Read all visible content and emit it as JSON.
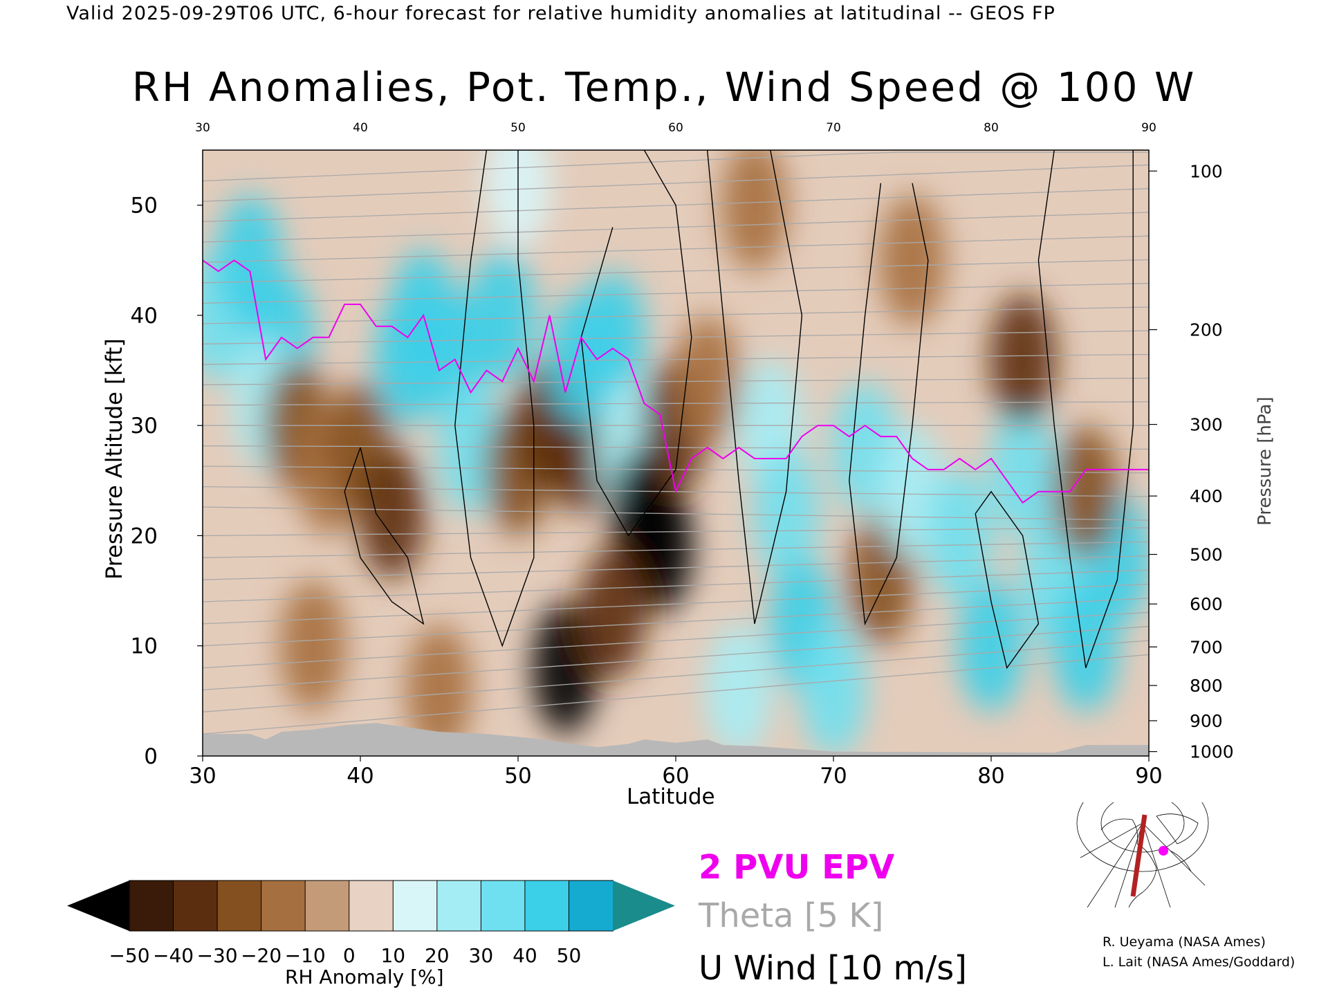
{
  "header": "Valid 2025-09-29T06 UTC, 6-hour forecast for relative humidity anomalies at latitudinal -- GEOS FP",
  "title": "RH Anomalies, Pot. Temp., Wind Speed @ 100 W",
  "axes": {
    "xlabel": "Latitude",
    "ylabel_left": "Pressure Altitude [kft]",
    "ylabel_right": "Pressure [hPa]",
    "x_ticks": [
      30,
      40,
      50,
      60,
      70,
      80,
      90
    ],
    "x_top_ticks": [
      30,
      40,
      50,
      60,
      70,
      80,
      90
    ],
    "y_ticks_kft": [
      0,
      10,
      20,
      30,
      40,
      50
    ],
    "pressure_ticks": [
      {
        "hpa": 100,
        "kft": 53.1
      },
      {
        "hpa": 200,
        "kft": 38.7
      },
      {
        "hpa": 300,
        "kft": 30.1
      },
      {
        "hpa": 400,
        "kft": 23.6
      },
      {
        "hpa": 500,
        "kft": 18.3
      },
      {
        "hpa": 600,
        "kft": 13.8
      },
      {
        "hpa": 700,
        "kft": 9.9
      },
      {
        "hpa": 800,
        "kft": 6.4
      },
      {
        "hpa": 900,
        "kft": 3.2
      },
      {
        "hpa": 1000,
        "kft": 0.4
      }
    ],
    "xlim": [
      30,
      90
    ],
    "ylim": [
      0,
      55
    ]
  },
  "legend": {
    "epv": "2 PVU EPV",
    "theta": "Theta [5 K]",
    "uwind": "U Wind [10 m/s]",
    "epv_color": "#ee00ee",
    "theta_color": "#a9a9a9",
    "uwind_color": "#000000"
  },
  "colorbar": {
    "label": "RH Anomaly [%]",
    "ticks": [
      -50,
      -40,
      -30,
      -20,
      -10,
      0,
      10,
      20,
      30,
      40,
      50
    ],
    "tick_labels": [
      "−50",
      "−40",
      "−30",
      "−20",
      "−10",
      "0",
      "10",
      "20",
      "30",
      "40",
      "50"
    ],
    "colors": [
      "#3a1a08",
      "#5c2e10",
      "#84501f",
      "#a66f3f",
      "#c49b78",
      "#e7d2c4",
      "#d8f6f8",
      "#a5edf5",
      "#6fe0f0",
      "#3ccfe8",
      "#15abd0"
    ],
    "under_color": "#000000",
    "over_color": "#1a8c8c"
  },
  "credits": [
    "R. Ueyama (NASA Ames)",
    "L. Lait (NASA Ames/Goddard)"
  ],
  "chart_data": {
    "type": "heatmap",
    "title": "RH Anomalies, Pot. Temp., Wind Speed @ 100 W",
    "xlabel": "Latitude",
    "ylabel": "Pressure Altitude [kft]",
    "xlim": [
      30,
      90
    ],
    "ylim": [
      0,
      55
    ],
    "grid": false,
    "legend_placement": "bottom-right",
    "rh_anomaly_blobs": [
      {
        "lat": 31,
        "kft": 40,
        "value": 35
      },
      {
        "lat": 33,
        "kft": 45,
        "value": 40
      },
      {
        "lat": 35,
        "kft": 38,
        "value": 45
      },
      {
        "lat": 34,
        "kft": 32,
        "value": 25
      },
      {
        "lat": 36,
        "kft": 30,
        "value": -25
      },
      {
        "lat": 38,
        "kft": 26,
        "value": -20
      },
      {
        "lat": 40,
        "kft": 28,
        "value": -30
      },
      {
        "lat": 42,
        "kft": 22,
        "value": -35
      },
      {
        "lat": 43,
        "kft": 36,
        "value": 40
      },
      {
        "lat": 44,
        "kft": 40,
        "value": 45
      },
      {
        "lat": 46,
        "kft": 36,
        "value": 40
      },
      {
        "lat": 47,
        "kft": 28,
        "value": 35
      },
      {
        "lat": 49,
        "kft": 40,
        "value": 40
      },
      {
        "lat": 50,
        "kft": 26,
        "value": -30
      },
      {
        "lat": 52,
        "kft": 30,
        "value": -35
      },
      {
        "lat": 54,
        "kft": 28,
        "value": -40
      },
      {
        "lat": 54,
        "kft": 36,
        "value": 40
      },
      {
        "lat": 56,
        "kft": 38,
        "value": 45
      },
      {
        "lat": 57,
        "kft": 28,
        "value": 25
      },
      {
        "lat": 58,
        "kft": 22,
        "value": -50
      },
      {
        "lat": 59,
        "kft": 19,
        "value": -50
      },
      {
        "lat": 53,
        "kft": 8,
        "value": -50
      },
      {
        "lat": 56,
        "kft": 13,
        "value": -40
      },
      {
        "lat": 60,
        "kft": 30,
        "value": -35
      },
      {
        "lat": 62,
        "kft": 34,
        "value": -20
      },
      {
        "lat": 66,
        "kft": 30,
        "value": 20
      },
      {
        "lat": 67,
        "kft": 22,
        "value": 35
      },
      {
        "lat": 68,
        "kft": 12,
        "value": 40
      },
      {
        "lat": 70,
        "kft": 6,
        "value": 35
      },
      {
        "lat": 72,
        "kft": 28,
        "value": 30
      },
      {
        "lat": 73,
        "kft": 16,
        "value": -25
      },
      {
        "lat": 75,
        "kft": 24,
        "value": 25
      },
      {
        "lat": 78,
        "kft": 20,
        "value": 35
      },
      {
        "lat": 80,
        "kft": 10,
        "value": 45
      },
      {
        "lat": 82,
        "kft": 26,
        "value": 30
      },
      {
        "lat": 84,
        "kft": 16,
        "value": 35
      },
      {
        "lat": 86,
        "kft": 10,
        "value": 45
      },
      {
        "lat": 88,
        "kft": 18,
        "value": 40
      },
      {
        "lat": 82,
        "kft": 36,
        "value": -35
      },
      {
        "lat": 86,
        "kft": 24,
        "value": -30
      },
      {
        "lat": 75,
        "kft": 45,
        "value": -15
      },
      {
        "lat": 65,
        "kft": 50,
        "value": -15
      },
      {
        "lat": 50,
        "kft": 52,
        "value": 10
      },
      {
        "lat": 37,
        "kft": 10,
        "value": -20
      },
      {
        "lat": 45,
        "kft": 6,
        "value": -15
      },
      {
        "lat": 64,
        "kft": 6,
        "value": 20
      }
    ],
    "epv_2pvu": {
      "lat": [
        30,
        31,
        32,
        33,
        34,
        35,
        36,
        37,
        38,
        39,
        40,
        41,
        42,
        43,
        44,
        45,
        46,
        47,
        48,
        49,
        50,
        51,
        52,
        53,
        54,
        55,
        56,
        57,
        58,
        59,
        60,
        61,
        62,
        63,
        64,
        65,
        66,
        67,
        68,
        69,
        70,
        71,
        72,
        73,
        74,
        75,
        76,
        77,
        78,
        79,
        80,
        81,
        82,
        83,
        84,
        85,
        86,
        87,
        88,
        89,
        90
      ],
      "kft": [
        45,
        44,
        45,
        44,
        36,
        38,
        37,
        38,
        38,
        41,
        41,
        39,
        39,
        38,
        40,
        35,
        36,
        33,
        35,
        34,
        37,
        34,
        40,
        33,
        38,
        36,
        37,
        36,
        32,
        31,
        24,
        27,
        28,
        27,
        28,
        27,
        27,
        27,
        29,
        30,
        30,
        29,
        30,
        29,
        29,
        27,
        26,
        26,
        27,
        26,
        27,
        25,
        23,
        24,
        24,
        24,
        26,
        26,
        26,
        26,
        26
      ]
    },
    "theta_levels_K": [
      290,
      295,
      300,
      305,
      310,
      315,
      320,
      325,
      330,
      335,
      340,
      345,
      350,
      355,
      360,
      365,
      370,
      375,
      380,
      385,
      390,
      395,
      400,
      405,
      410,
      415,
      420
    ],
    "u_wind_contours_ms": [
      0,
      10,
      20,
      30
    ]
  }
}
